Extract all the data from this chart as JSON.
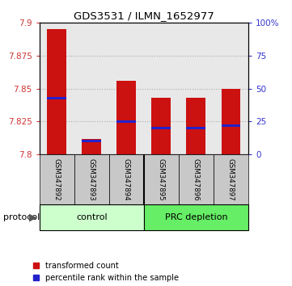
{
  "title": "GDS3531 / ILMN_1652977",
  "samples": [
    "GSM347892",
    "GSM347893",
    "GSM347894",
    "GSM347895",
    "GSM347896",
    "GSM347897"
  ],
  "red_bar_tops": [
    7.895,
    7.812,
    7.856,
    7.843,
    7.843,
    7.85
  ],
  "blue_markers": [
    7.843,
    7.81,
    7.825,
    7.82,
    7.82,
    7.822
  ],
  "ymin": 7.8,
  "ymax": 7.9,
  "yticks": [
    7.8,
    7.825,
    7.85,
    7.875,
    7.9
  ],
  "ytick_labels": [
    "7.8",
    "7.825",
    "7.85",
    "7.875",
    "7.9"
  ],
  "y2ticks": [
    0,
    25,
    50,
    75,
    100
  ],
  "y2tick_labels": [
    "0",
    "25",
    "50",
    "75",
    "100%"
  ],
  "left_tick_color": "#cc3333",
  "right_tick_color": "#3333cc",
  "bar_color": "#cc1111",
  "marker_color": "#2222cc",
  "bar_width": 0.55,
  "group_names": [
    "control",
    "PRC depletion"
  ],
  "control_color": "#ccffcc",
  "prc_color": "#66ee66",
  "sample_bg": "#c8c8c8",
  "legend_red": "transformed count",
  "legend_blue": "percentile rank within the sample",
  "plot_bg": "#e8e8e8",
  "grid_color": "#aaaaaa"
}
